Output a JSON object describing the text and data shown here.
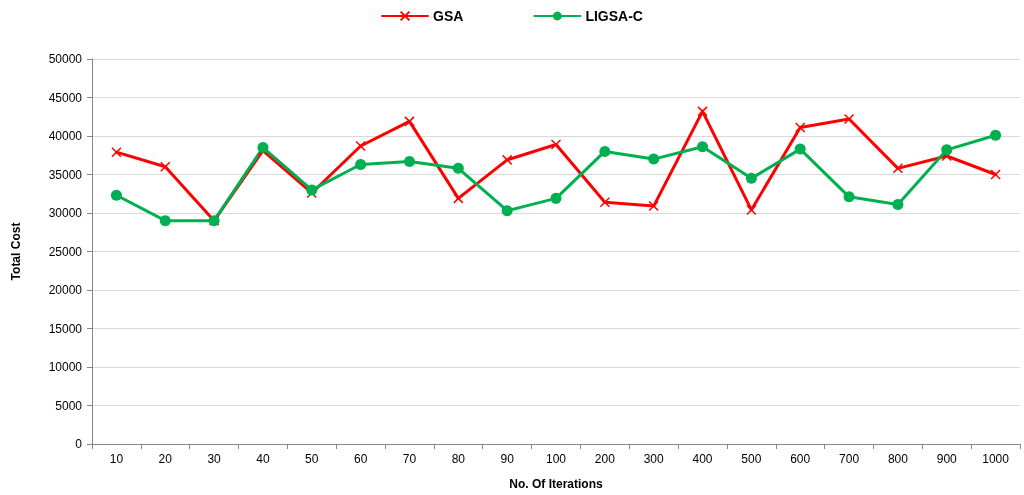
{
  "chart_data": {
    "type": "line",
    "xlabel": "No. Of Iterations",
    "ylabel": "Total Cost",
    "categories": [
      "10",
      "20",
      "30",
      "40",
      "50",
      "60",
      "70",
      "80",
      "90",
      "100",
      "200",
      "300",
      "400",
      "500",
      "600",
      "700",
      "800",
      "900",
      "1000"
    ],
    "ylim": [
      0,
      50000
    ],
    "yticks": [
      0,
      5000,
      10000,
      15000,
      20000,
      25000,
      30000,
      35000,
      40000,
      45000,
      50000
    ],
    "grid": "y",
    "legend": "top",
    "series": [
      {
        "name": "GSA",
        "color": "#ff0000",
        "marker": "cross",
        "values": [
          37900,
          36000,
          29000,
          38100,
          32600,
          38700,
          41900,
          31900,
          36900,
          38900,
          31400,
          30900,
          43200,
          30400,
          41100,
          42200,
          35800,
          37400,
          35000
        ]
      },
      {
        "name": "LIGSA-C",
        "color": "#00b050",
        "marker": "circle",
        "values": [
          32300,
          29000,
          29000,
          38500,
          33000,
          36300,
          36700,
          35800,
          30300,
          31900,
          38000,
          37000,
          38600,
          34500,
          38300,
          32100,
          31100,
          38200,
          40100
        ]
      }
    ]
  }
}
